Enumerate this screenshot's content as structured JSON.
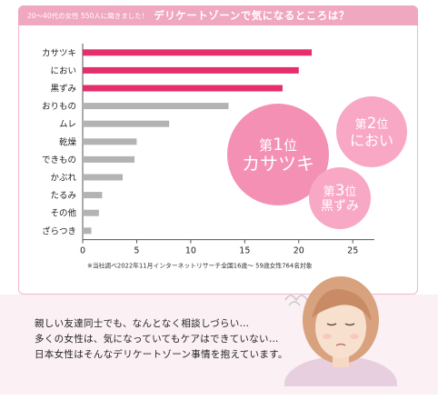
{
  "header": {
    "small": "20〜40代の女性 550人に聞きました！",
    "big": "デリケートゾーンで気になるところは？"
  },
  "chart_data": {
    "type": "bar",
    "orientation": "horizontal",
    "categories": [
      "カサツキ",
      "におい",
      "黒ずみ",
      "おりもの",
      "ムレ",
      "乾燥",
      "できもの",
      "かぶれ",
      "たるみ",
      "その他",
      "ざらつき"
    ],
    "values": [
      21.2,
      20.0,
      18.5,
      13.5,
      8.0,
      5.0,
      4.8,
      3.7,
      1.8,
      1.5,
      0.8
    ],
    "xticks": [
      0,
      5,
      10,
      15,
      20,
      25
    ],
    "xlim": [
      0,
      27
    ],
    "highlight_count": 3,
    "colors": {
      "highlight": "#e62e6b",
      "normal": "#b3b3b3"
    },
    "note": "※当社調べ2022年11月インターネットリサーチ全国16歳〜 59歳女性764名対象"
  },
  "badges": [
    {
      "rank_prefix": "第",
      "rank_num": "1",
      "rank_suffix": "位",
      "name": "カサツキ"
    },
    {
      "rank_prefix": "第",
      "rank_num": "2",
      "rank_suffix": "位",
      "name": "におい"
    },
    {
      "rank_prefix": "第",
      "rank_num": "3",
      "rank_suffix": "位",
      "name": "黒ずみ"
    }
  ],
  "caption": {
    "line1": "親しい友達同士でも、なんとなく相談しづらい…",
    "line2": "多くの女性は、気になっていてもケアはできていない…",
    "line3": "日本女性はそんなデリケートゾーン事情を抱えています。"
  },
  "colors": {
    "accent": "#f0a7c0",
    "badge": "#f8a8c4",
    "background_bottom": "#fbf0f4"
  }
}
